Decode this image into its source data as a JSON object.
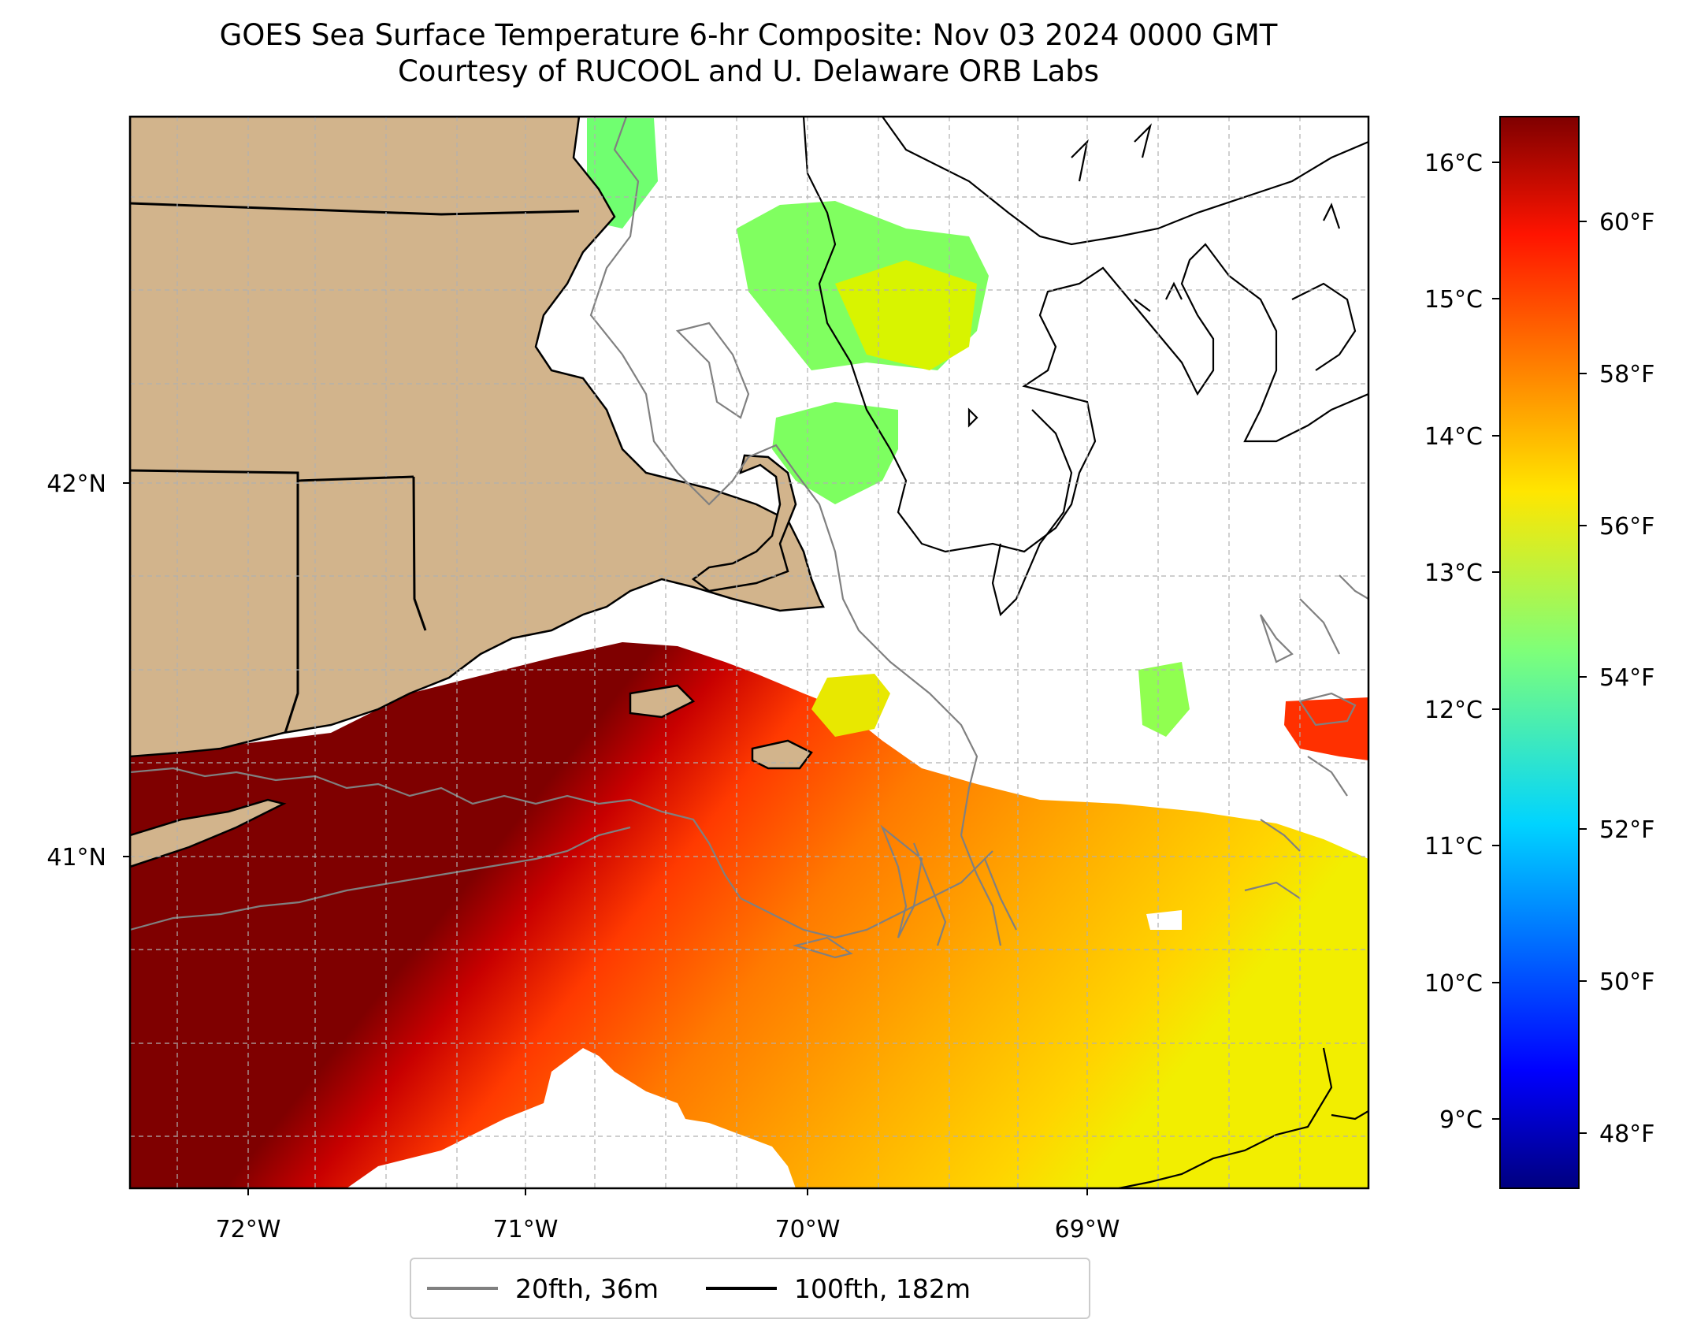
{
  "title": {
    "line1": "GOES Sea Surface Temperature 6-hr Composite: Nov 03 2024 0000 GMT",
    "line2": "Courtesy of RUCOOL and U. Delaware ORB Labs"
  },
  "map": {
    "lon_ticks": [
      "72°W",
      "71°W",
      "70°W",
      "69°W"
    ],
    "lat_ticks": [
      "42°N",
      "41°N"
    ],
    "colors": {
      "land": "#d2b48c",
      "ocean_no_data": "#ffffff",
      "isobath_20": "#808080",
      "isobath_100": "#000000",
      "gridline": "#b0b0b0"
    }
  },
  "colorbar": {
    "colormap": "jet",
    "celsius_ticks": [
      "16°C",
      "15°C",
      "14°C",
      "13°C",
      "12°C",
      "11°C",
      "10°C",
      "9°C"
    ],
    "fahrenheit_ticks": [
      "60°F",
      "58°F",
      "56°F",
      "54°F",
      "52°F",
      "50°F",
      "48°F"
    ]
  },
  "legend": {
    "items": [
      {
        "label": "20fth, 36m",
        "color": "#808080"
      },
      {
        "label": "100fth, 182m",
        "color": "#000000"
      }
    ]
  }
}
